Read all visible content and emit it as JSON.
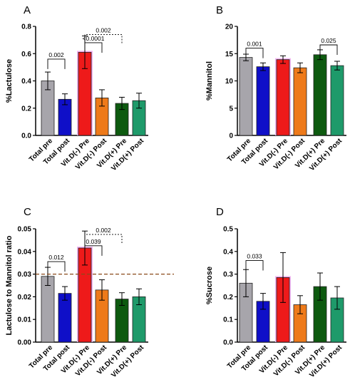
{
  "categories": [
    "Total pre",
    "Total post",
    "Vit.D(-) Pre",
    "Vit.D(-) Post",
    "Vit.D(+) Pre",
    "Vit.D(+) Post"
  ],
  "colors": [
    "#a7a5ab",
    "#0f0fc8",
    "#ee1a1a",
    "#ee7a1a",
    "#0d5a0f",
    "#1e9a6a"
  ],
  "chart_data": [
    {
      "id": "A",
      "type": "bar",
      "ylabel": "%Lactulose",
      "ylim": [
        0,
        0.8
      ],
      "yticks": [
        "0.0",
        "0.2",
        "0.4",
        "0.6",
        "0.8"
      ],
      "values": [
        0.4,
        0.265,
        0.61,
        0.275,
        0.235,
        0.255
      ],
      "errors": [
        0.065,
        0.04,
        0.12,
        0.06,
        0.045,
        0.055
      ],
      "annotations": [
        {
          "label": "0.002",
          "from": 0,
          "to": 1,
          "y": 0.56,
          "style": "solid"
        },
        {
          "label": "<0.0001",
          "from": 2,
          "to": 3,
          "y": 0.68,
          "style": "solid"
        },
        {
          "label": "0.002",
          "from": 2,
          "to": 4,
          "y": 0.74,
          "style": "dotted"
        }
      ]
    },
    {
      "id": "B",
      "type": "bar",
      "ylabel": "%Mannitol",
      "ylim": [
        0,
        20
      ],
      "yticks": [
        "0",
        "5",
        "10",
        "15",
        "20"
      ],
      "values": [
        14.3,
        12.6,
        13.9,
        12.4,
        14.8,
        12.8
      ],
      "errors": [
        0.6,
        0.7,
        0.7,
        0.9,
        0.9,
        0.8
      ],
      "annotations": [
        {
          "label": "0.001",
          "from": 0,
          "to": 1,
          "y": 16.0,
          "style": "solid"
        },
        {
          "label": "0.025",
          "from": 4,
          "to": 5,
          "y": 16.6,
          "style": "solid"
        }
      ]
    },
    {
      "id": "C",
      "type": "bar",
      "ylabel": "Lactulose to Mannitol ratio",
      "ylim": [
        0,
        0.05
      ],
      "yticks": [
        "0.00",
        "0.01",
        "0.02",
        "0.03",
        "0.04",
        "0.05"
      ],
      "values": [
        0.029,
        0.0215,
        0.0415,
        0.023,
        0.019,
        0.02
      ],
      "errors": [
        0.004,
        0.003,
        0.0075,
        0.0045,
        0.0028,
        0.0035
      ],
      "reference_line": 0.03,
      "annotations": [
        {
          "label": "0.012",
          "from": 0,
          "to": 1,
          "y": 0.0355,
          "style": "solid"
        },
        {
          "label": "0.039",
          "from": 2,
          "to": 3,
          "y": 0.0425,
          "style": "solid"
        },
        {
          "label": "0.002",
          "from": 2,
          "to": 4,
          "y": 0.0475,
          "style": "dotted"
        }
      ]
    },
    {
      "id": "D",
      "type": "bar",
      "ylabel": "%Sucrose",
      "ylim": [
        0,
        0.5
      ],
      "yticks": [
        "0.0",
        "0.1",
        "0.2",
        "0.3",
        "0.4",
        "0.5"
      ],
      "values": [
        0.26,
        0.18,
        0.285,
        0.165,
        0.245,
        0.195
      ],
      "errors": [
        0.06,
        0.035,
        0.11,
        0.04,
        0.06,
        0.05
      ],
      "annotations": [
        {
          "label": "0.033",
          "from": 0,
          "to": 1,
          "y": 0.36,
          "style": "solid"
        }
      ]
    }
  ]
}
